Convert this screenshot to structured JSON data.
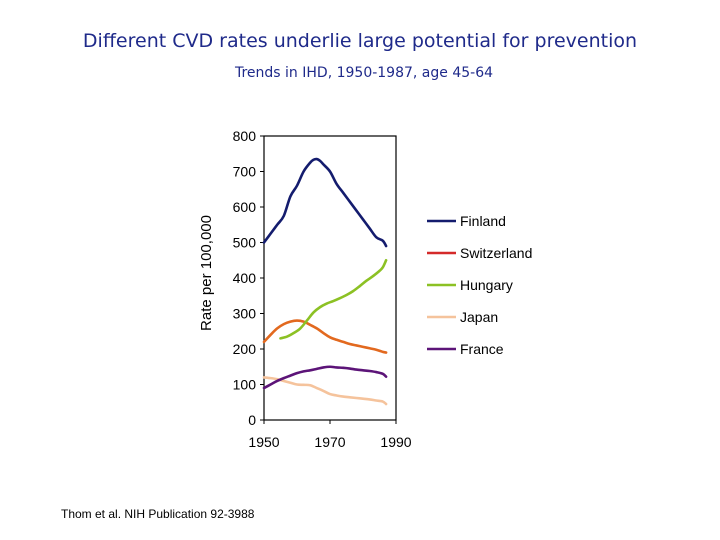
{
  "title": "Different CVD rates underlie large potential for prevention",
  "subtitle": "Trends in IHD, 1950-1987, age 45-64",
  "footer": "Thom et al. NIH  Publication 92-3988",
  "chart_data": {
    "type": "line",
    "title": "Trends in IHD, 1950-1987, age 45-64",
    "xlabel": "",
    "ylabel": "Rate per 100,000",
    "xlim": [
      1950,
      1990
    ],
    "ylim": [
      0,
      800
    ],
    "xticks": [
      1950,
      1970,
      1990
    ],
    "yticks": [
      0,
      100,
      200,
      300,
      400,
      500,
      600,
      700,
      800
    ],
    "grid": false,
    "legend_position": "right",
    "series": [
      {
        "name": "Finland",
        "color": "#141c6e",
        "legend_color": "#141c6e",
        "x": [
          1950,
          1952,
          1954,
          1956,
          1958,
          1960,
          1962,
          1964,
          1965,
          1966,
          1967,
          1968,
          1970,
          1972,
          1974,
          1976,
          1978,
          1980,
          1982,
          1984,
          1986,
          1987
        ],
        "y": [
          500,
          525,
          550,
          575,
          630,
          660,
          700,
          725,
          733,
          735,
          730,
          720,
          700,
          665,
          640,
          615,
          590,
          565,
          540,
          515,
          505,
          490
        ]
      },
      {
        "name": "Switzerland",
        "color": "#e2691f",
        "legend_color": "#d42a2a",
        "x": [
          1950,
          1952,
          1954,
          1956,
          1958,
          1960,
          1962,
          1964,
          1966,
          1968,
          1970,
          1972,
          1974,
          1976,
          1978,
          1980,
          1982,
          1984,
          1986,
          1987
        ],
        "y": [
          220,
          240,
          258,
          270,
          277,
          280,
          277,
          268,
          258,
          245,
          233,
          226,
          220,
          214,
          210,
          206,
          202,
          198,
          192,
          190
        ]
      },
      {
        "name": "Hungary",
        "color": "#8cc124",
        "legend_color": "#8cc124",
        "x": [
          1955,
          1957,
          1959,
          1961,
          1963,
          1965,
          1967,
          1969,
          1971,
          1973,
          1975,
          1977,
          1979,
          1981,
          1983,
          1985,
          1986,
          1987
        ],
        "y": [
          230,
          235,
          245,
          258,
          280,
          303,
          318,
          328,
          335,
          343,
          352,
          363,
          377,
          392,
          405,
          420,
          430,
          450
        ]
      },
      {
        "name": "Japan",
        "color": "#f5c39c",
        "legend_color": "#f5c39c",
        "x": [
          1950,
          1952,
          1954,
          1956,
          1958,
          1960,
          1962,
          1964,
          1966,
          1968,
          1970,
          1972,
          1974,
          1976,
          1978,
          1980,
          1982,
          1984,
          1986,
          1987
        ],
        "y": [
          120,
          118,
          115,
          110,
          105,
          100,
          99,
          98,
          90,
          82,
          73,
          69,
          66,
          64,
          62,
          60,
          58,
          55,
          52,
          45
        ]
      },
      {
        "name": "France",
        "color": "#5c1478",
        "legend_color": "#5c1478",
        "x": [
          1950,
          1952,
          1954,
          1956,
          1958,
          1960,
          1962,
          1964,
          1966,
          1968,
          1970,
          1972,
          1974,
          1976,
          1978,
          1980,
          1982,
          1984,
          1986,
          1987
        ],
        "y": [
          90,
          100,
          110,
          118,
          125,
          132,
          137,
          140,
          144,
          148,
          150,
          148,
          147,
          145,
          142,
          140,
          138,
          135,
          130,
          122
        ]
      }
    ]
  }
}
